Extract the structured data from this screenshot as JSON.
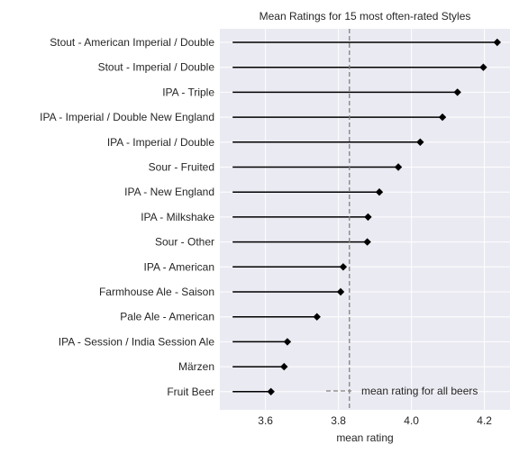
{
  "chart_data": {
    "type": "lollipop",
    "orientation": "horizontal",
    "title": "Mean Ratings for 15 most often-rated Styles",
    "xlabel": "mean rating",
    "ylabel": "",
    "xlim": [
      3.475,
      4.27
    ],
    "xticks": [
      "3.6",
      "3.8",
      "4.0",
      "4.2"
    ],
    "baseline": 3.51,
    "grid": true,
    "background": "#eaeaf2",
    "categories": [
      "Stout - American Imperial / Double",
      "Stout - Imperial / Double",
      "IPA - Triple",
      "IPA - Imperial / Double New England",
      "IPA - Imperial / Double",
      "Sour - Fruited",
      "IPA - New England",
      "IPA - Milkshake",
      "Sour - Other",
      "IPA - American",
      "Farmhouse Ale - Saison",
      "Pale Ale - American",
      "IPA - Session / India Session Ale",
      "Märzen",
      "Fruit Beer"
    ],
    "values": [
      4.235,
      4.197,
      4.126,
      4.085,
      4.024,
      3.964,
      3.912,
      3.881,
      3.879,
      3.813,
      3.806,
      3.741,
      3.66,
      3.651,
      3.615
    ],
    "reference_line": {
      "value": 3.83,
      "label": "mean rating for all beers",
      "style": "dashed",
      "color": "#808080"
    },
    "legend": {
      "location": "bottom-right",
      "entries": [
        "mean rating for all beers"
      ]
    },
    "colors": {
      "marker": "#000000",
      "stem": "#000000"
    }
  }
}
